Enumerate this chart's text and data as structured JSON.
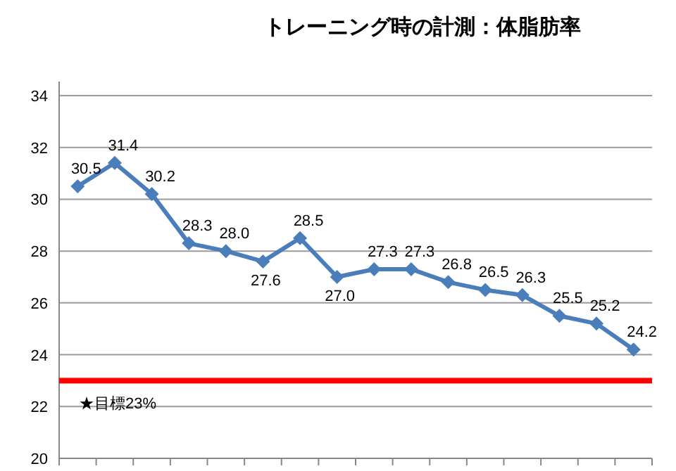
{
  "chart_data": {
    "type": "line",
    "title": "トレーニング時の計測：体脂肪率",
    "categories": [
      null,
      null,
      null,
      null,
      null,
      null,
      null,
      null,
      null,
      null,
      null,
      null,
      null,
      null,
      null,
      null
    ],
    "series": [
      {
        "color": "#4a7ebb",
        "values": [
          30.5,
          31.4,
          30.2,
          28.3,
          28.0,
          27.6,
          28.5,
          27.0,
          27.3,
          27.3,
          26.8,
          26.5,
          26.3,
          25.5,
          25.2,
          24.2
        ],
        "value_labels": [
          "30.5",
          "31.4",
          "30.2",
          "28.3",
          "28.0",
          "27.6",
          "28.5",
          "27.0",
          "27.3",
          "27.3",
          "26.8",
          "26.5",
          "26.3",
          "25.5",
          "25.2",
          "24.2"
        ]
      }
    ],
    "ylim": [
      20,
      34
    ],
    "yticks": [
      20,
      22,
      24,
      26,
      28,
      30,
      32,
      34
    ],
    "grid": "y",
    "tick_labels": "y",
    "marker": "diamond",
    "ref_lines": [
      {
        "axis": "y",
        "value": 23,
        "label": "★目標23%",
        "color": "#ff0000"
      }
    ]
  }
}
